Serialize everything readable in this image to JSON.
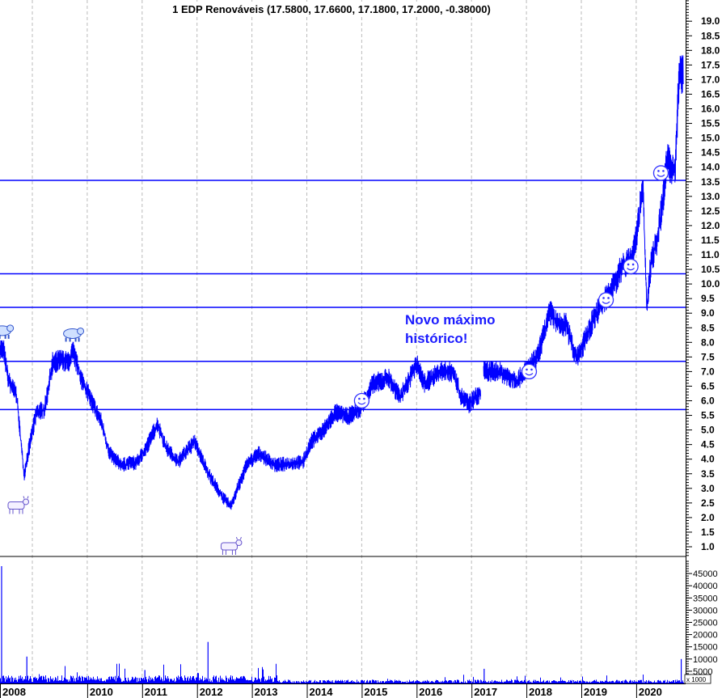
{
  "chart_data": {
    "type": "line",
    "title": "1 EDP Renováveis (17.5800, 17.6600, 17.1800, 17.2000, -0.38000)",
    "xlabel": "",
    "ylabel": "",
    "x_tick_labels": [
      "2008",
      "2010",
      "2011",
      "2012",
      "2013",
      "2014",
      "2015",
      "2016",
      "2017",
      "2018",
      "2019",
      "2020"
    ],
    "x_tick_years": [
      2008,
      2010,
      2011,
      2012,
      2013,
      2014,
      2015,
      2016,
      2017,
      2018,
      2019,
      2020
    ],
    "ylim": [
      0.6,
      19.7
    ],
    "y_ticks": [
      1.0,
      1.5,
      2.0,
      2.5,
      3.0,
      3.5,
      4.0,
      4.5,
      5.0,
      5.5,
      6.0,
      6.5,
      7.0,
      7.5,
      8.0,
      8.5,
      9.0,
      9.5,
      10.0,
      10.5,
      11.0,
      11.5,
      12.0,
      12.5,
      13.0,
      13.5,
      14.0,
      14.5,
      15.0,
      15.5,
      16.0,
      16.5,
      17.0,
      17.5,
      18.0,
      18.5,
      19.0
    ],
    "grid": "vertical dashed at year starts",
    "color": "#0000ff",
    "series": [
      {
        "name": "EDP Renováveis",
        "points": [
          [
            2008.41,
            7.8
          ],
          [
            2008.48,
            7.7
          ],
          [
            2008.56,
            6.7
          ],
          [
            2008.71,
            6.2
          ],
          [
            2008.81,
            4.2
          ],
          [
            2008.85,
            3.5
          ],
          [
            2008.93,
            4.3
          ],
          [
            2009.07,
            5.6
          ],
          [
            2009.22,
            5.7
          ],
          [
            2009.37,
            7.3
          ],
          [
            2009.52,
            7.4
          ],
          [
            2009.66,
            7.3
          ],
          [
            2009.74,
            7.7
          ],
          [
            2009.88,
            6.8
          ],
          [
            2010.1,
            5.9
          ],
          [
            2010.25,
            5.3
          ],
          [
            2010.4,
            4.2
          ],
          [
            2010.62,
            3.8
          ],
          [
            2010.91,
            3.9
          ],
          [
            2011.06,
            4.35
          ],
          [
            2011.28,
            5.2
          ],
          [
            2011.43,
            4.4
          ],
          [
            2011.65,
            3.9
          ],
          [
            2011.95,
            4.6
          ],
          [
            2012.09,
            4.0
          ],
          [
            2012.24,
            3.4
          ],
          [
            2012.46,
            2.7
          ],
          [
            2012.61,
            2.4
          ],
          [
            2012.76,
            3.1
          ],
          [
            2012.9,
            3.8
          ],
          [
            2013.12,
            4.2
          ],
          [
            2013.42,
            3.8
          ],
          [
            2013.93,
            3.9
          ],
          [
            2014.08,
            4.6
          ],
          [
            2014.3,
            5.0
          ],
          [
            2014.52,
            5.6
          ],
          [
            2014.74,
            5.45
          ],
          [
            2014.96,
            5.7
          ],
          [
            2015.19,
            6.55
          ],
          [
            2015.48,
            6.8
          ],
          [
            2015.7,
            6.1
          ],
          [
            2016.0,
            7.25
          ],
          [
            2016.14,
            6.6
          ],
          [
            2016.44,
            7.0
          ],
          [
            2016.66,
            7.0
          ],
          [
            2016.81,
            6.15
          ],
          [
            2016.95,
            5.9
          ],
          [
            2017.17,
            6.3
          ],
          null,
          [
            2017.22,
            7.0
          ],
          [
            2017.47,
            7.0
          ],
          [
            2017.84,
            6.7
          ],
          [
            2017.98,
            7.0
          ],
          [
            2018.2,
            7.5
          ],
          [
            2018.43,
            9.05
          ],
          [
            2018.57,
            8.6
          ],
          [
            2018.72,
            8.6
          ],
          [
            2018.9,
            7.5
          ],
          [
            2019.01,
            7.8
          ],
          [
            2019.24,
            8.9
          ],
          [
            2019.53,
            9.75
          ],
          [
            2019.75,
            10.6
          ],
          [
            2019.93,
            10.85
          ],
          [
            2020.05,
            12.25
          ],
          [
            2020.12,
            13.5
          ],
          [
            2020.19,
            9.2
          ],
          [
            2020.27,
            10.8
          ],
          [
            2020.37,
            11.4
          ],
          [
            2020.46,
            12.5
          ],
          [
            2020.56,
            14.2
          ],
          [
            2020.71,
            13.9
          ],
          [
            2020.78,
            17.2
          ],
          [
            2020.86,
            17.2
          ]
        ]
      }
    ],
    "horizontal_lines": [
      13.55,
      10.35,
      9.2,
      7.35,
      5.7
    ],
    "annotations": [
      {
        "text_line1": "Novo máximo",
        "text_line2": "histórico!",
        "year": 2016.0,
        "price": 8.2
      }
    ],
    "markers": [
      {
        "type": "bear",
        "year": 2008.45,
        "price": 8.4
      },
      {
        "type": "bear",
        "year": 2009.73,
        "price": 8.3
      },
      {
        "type": "bull",
        "year": 2008.72,
        "price": 2.4
      },
      {
        "type": "bull",
        "year": 2012.6,
        "price": 1.0
      },
      {
        "type": "smiley",
        "year": 2015.0,
        "price": 6.0
      },
      {
        "type": "smiley",
        "year": 2018.05,
        "price": 7.0
      },
      {
        "type": "smiley",
        "year": 2019.45,
        "price": 9.45
      },
      {
        "type": "smiley",
        "year": 2019.9,
        "price": 10.6
      },
      {
        "type": "smiley",
        "year": 2020.45,
        "price": 13.8
      }
    ],
    "volume": {
      "unit_label": "x 1000",
      "y_ticks": [
        5000,
        10000,
        15000,
        20000,
        25000,
        30000,
        35000,
        40000,
        45000
      ],
      "ylim": [
        0,
        52000
      ],
      "spikes": [
        [
          2008.44,
          48000
        ],
        [
          2008.9,
          11000
        ],
        [
          2012.2,
          17000
        ],
        [
          2017.23,
          6000
        ],
        [
          2020.82,
          10000
        ],
        [
          2009.86,
          2500
        ],
        [
          2011.05,
          5500
        ]
      ],
      "baseline_level": 1500
    }
  }
}
